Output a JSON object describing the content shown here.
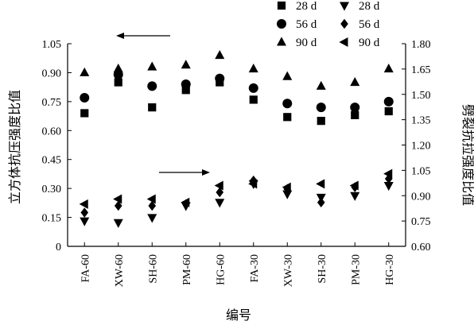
{
  "chart_data": {
    "type": "scatter",
    "xlabel": "编号",
    "ylabel_left": "立方体抗压强度比值",
    "ylabel_right": "劈裂抗拉强度比值",
    "categories": [
      "FA-60",
      "XW-60",
      "SH-60",
      "PM-60",
      "HG-60",
      "FA-30",
      "XW-30",
      "SH-30",
      "PM-30",
      "HG-30"
    ],
    "ylim_left": [
      0,
      1.05
    ],
    "ylim_right": [
      0.6,
      1.8
    ],
    "yticks_left": [
      "0",
      "0.15",
      "0.30",
      "0.45",
      "0.60",
      "0.75",
      "0.90",
      "1.05"
    ],
    "yticks_right": [
      "0.60",
      "0.75",
      "0.90",
      "1.05",
      "1.20",
      "1.35",
      "1.50",
      "1.65",
      "1.80"
    ],
    "grid": false,
    "legend_position": "top-right",
    "series": [
      {
        "name": "28 d",
        "axis": "left",
        "marker": "square",
        "values": [
          0.69,
          0.85,
          0.72,
          0.81,
          0.85,
          0.76,
          0.67,
          0.65,
          0.68,
          0.7
        ]
      },
      {
        "name": "56 d",
        "axis": "left",
        "marker": "circle",
        "values": [
          0.77,
          0.89,
          0.83,
          0.84,
          0.87,
          0.82,
          0.74,
          0.72,
          0.72,
          0.75
        ]
      },
      {
        "name": "90 d",
        "axis": "left",
        "marker": "triangle-up",
        "values": [
          0.9,
          0.92,
          0.93,
          0.94,
          0.99,
          0.92,
          0.88,
          0.83,
          0.85,
          0.92
        ]
      },
      {
        "name": "28 d",
        "axis": "right",
        "marker": "triangle-down",
        "values": [
          0.75,
          0.74,
          0.77,
          0.84,
          0.86,
          0.97,
          0.91,
          0.89,
          0.9,
          0.96
        ]
      },
      {
        "name": "56 d",
        "axis": "right",
        "marker": "diamond",
        "values": [
          0.8,
          0.84,
          0.84,
          0.85,
          0.92,
          0.99,
          0.94,
          0.86,
          0.95,
          1.0
        ]
      },
      {
        "name": "90 d",
        "axis": "right",
        "marker": "triangle-left",
        "values": [
          0.85,
          0.88,
          0.88,
          0.86,
          0.96,
          0.97,
          0.95,
          0.97,
          0.96,
          1.03
        ]
      }
    ]
  }
}
